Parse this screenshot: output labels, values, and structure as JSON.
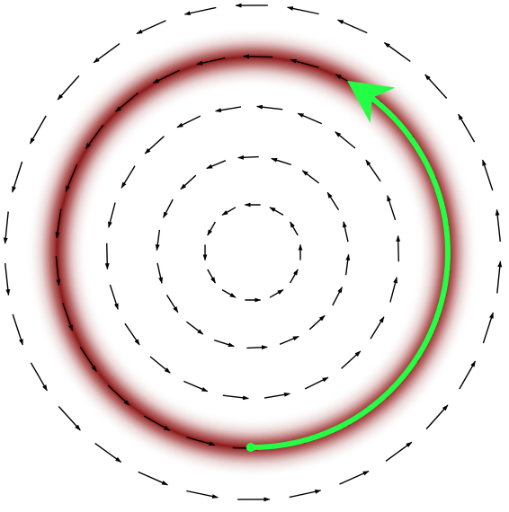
{
  "diagram": {
    "type": "rotational-vector-field",
    "rotation": "counterclockwise",
    "rings": 5,
    "arrows_per_ring": [
      12,
      18,
      22,
      26,
      30
    ],
    "colors": {
      "background": "#ffffff",
      "vectors": "#000000",
      "band": "#8b1a1a",
      "path": "#22ff44"
    },
    "band": {
      "label": "",
      "style": "soft-glow"
    },
    "path": {
      "label": "",
      "start": "bottom",
      "end": "upper-right",
      "direction": "counterclockwise"
    }
  }
}
